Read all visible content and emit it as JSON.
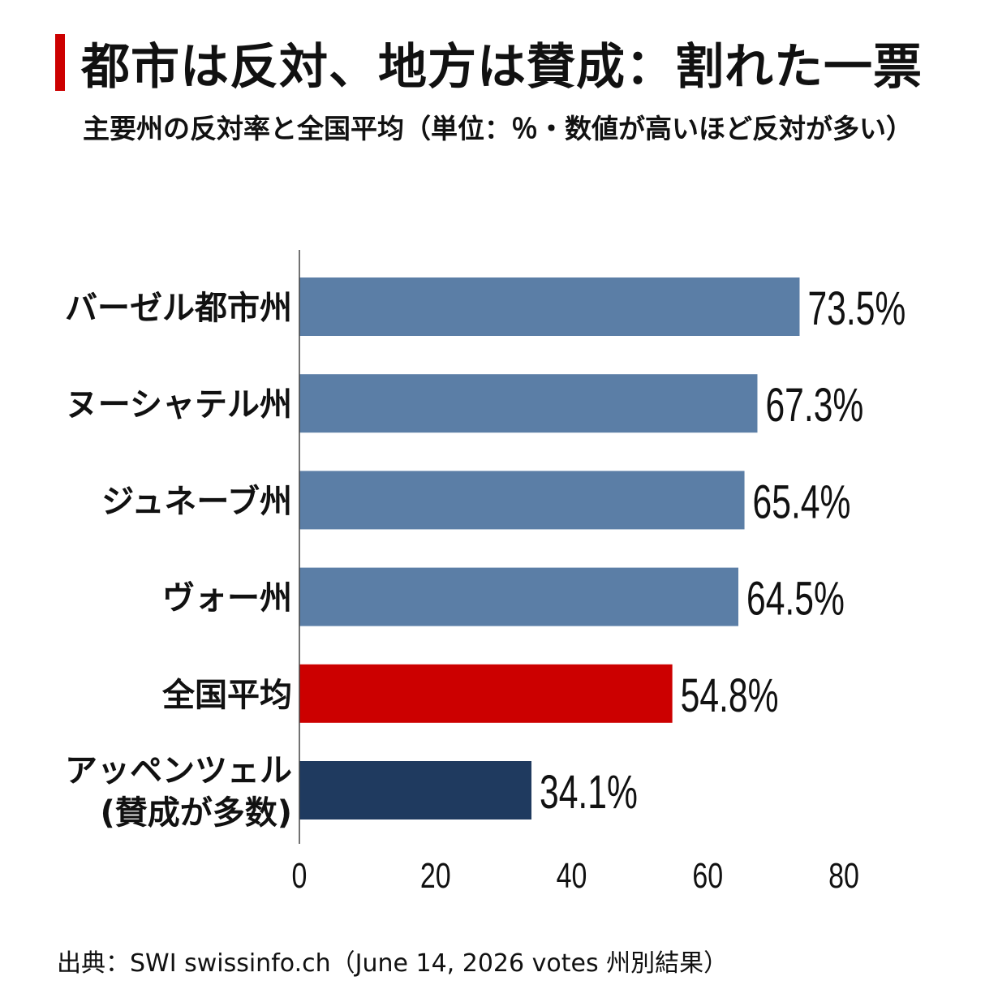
{
  "header": {
    "title": "都市は反対、地方は賛成：割れた一票",
    "subtitle": "主要州の反対率と全国平均（単位：％・数値が高いほど反対が多い）",
    "accent_color": "#cc0000"
  },
  "chart_data": {
    "type": "bar",
    "orientation": "horizontal",
    "title": "都市は反対、地方は賛成：割れた一票",
    "subtitle": "主要州の反対率と全国平均（単位：％・数値が高いほど反対が多い）",
    "categories": [
      [
        "バーゼル都市州"
      ],
      [
        "ヌーシャテル州"
      ],
      [
        "ジュネーブ州"
      ],
      [
        "ヴォー州"
      ],
      [
        "全国平均"
      ],
      [
        "アッペンツェル",
        "(賛成が多数)"
      ]
    ],
    "values": [
      73.5,
      67.3,
      65.4,
      64.5,
      54.8,
      34.1
    ],
    "value_labels": [
      "73.5%",
      "67.3%",
      "65.4%",
      "64.5%",
      "54.8%",
      "34.1%"
    ],
    "colors": [
      "#5b7ea6",
      "#5b7ea6",
      "#5b7ea6",
      "#5b7ea6",
      "#cc0000",
      "#1f3a5f"
    ],
    "xlim": [
      0,
      80
    ],
    "xticks": [
      0,
      20,
      40,
      60,
      80
    ],
    "grid": false
  },
  "footer": {
    "source": "出典：SWI swissinfo.ch（June 14, 2026 votes 州別結果）"
  }
}
